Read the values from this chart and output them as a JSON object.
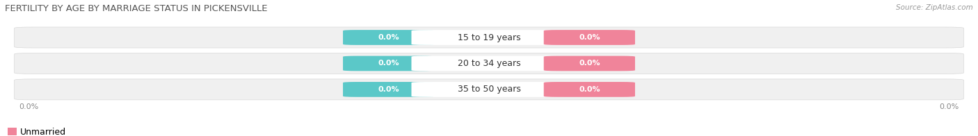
{
  "title": "FERTILITY BY AGE BY MARRIAGE STATUS IN PICKENSVILLE",
  "source": "Source: ZipAtlas.com",
  "categories": [
    "15 to 19 years",
    "20 to 34 years",
    "35 to 50 years"
  ],
  "married_values": [
    0.0,
    0.0,
    0.0
  ],
  "unmarried_values": [
    0.0,
    0.0,
    0.0
  ],
  "married_color": "#5bc8c8",
  "unmarried_color": "#f0849a",
  "row_bg_color": "#f0f0f0",
  "row_separator_color": "#d8d8d8",
  "title_fontsize": 9.5,
  "source_fontsize": 7.5,
  "axis_label_fontsize": 8,
  "cat_label_fontsize": 9,
  "pill_label_fontsize": 8,
  "legend_fontsize": 9,
  "background_color": "#ffffff",
  "title_color": "#555555",
  "source_color": "#999999",
  "axis_label_color": "#888888",
  "cat_text_color": "#333333"
}
